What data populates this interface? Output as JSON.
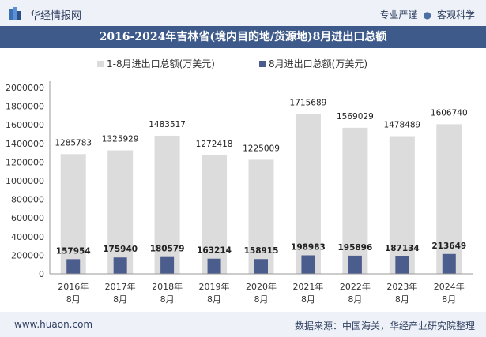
{
  "header": {
    "brand": "华经情报网",
    "tags": [
      "专业严谨",
      "客观科学"
    ]
  },
  "title": "2016-2024年吉林省(境内目的地/货源地)8月进出口总额",
  "footer": {
    "site": "www.huaon.com",
    "source": "数据来源：中国海关，华经产业研究院整理"
  },
  "colors": {
    "series_total": "#dcdcdc",
    "series_month": "#4a5d8c",
    "header_band": "#3d5a8a"
  },
  "chart_data": {
    "type": "bar",
    "title": "2016-2024年吉林省(境内目的地/货源地)8月进出口总额",
    "categories": [
      "2016年\n8月",
      "2017年\n8月",
      "2018年\n8月",
      "2019年\n8月",
      "2020年\n8月",
      "2021年\n8月",
      "2022年\n8月",
      "2023年\n8月",
      "2024年\n8月"
    ],
    "series": [
      {
        "name": "1-8月进出口总额(万美元)",
        "values": [
          1285783,
          1325929,
          1483517,
          1272418,
          1225009,
          1715689,
          1569029,
          1478489,
          1606740
        ]
      },
      {
        "name": "8月进出口总额(万美元)",
        "values": [
          157954,
          175940,
          180579,
          163214,
          158915,
          198983,
          195896,
          187134,
          213649
        ]
      }
    ],
    "ylim": [
      0,
      2000000
    ],
    "yticks": [
      0,
      200000,
      400000,
      600000,
      800000,
      1000000,
      1200000,
      1400000,
      1600000,
      1800000,
      2000000
    ],
    "legend_position": "top",
    "grid": false
  }
}
